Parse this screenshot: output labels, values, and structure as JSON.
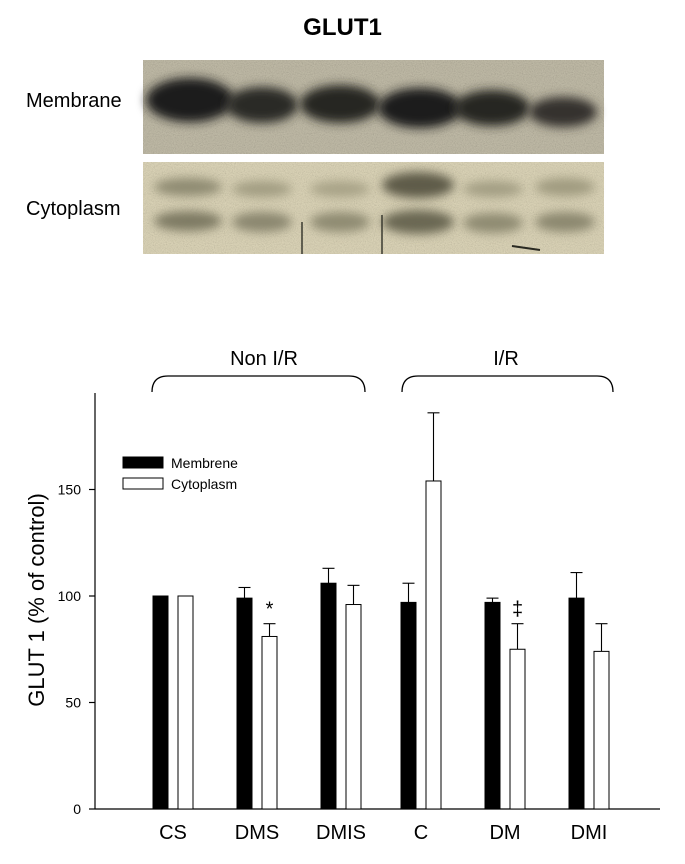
{
  "blot": {
    "title": "GLUT1",
    "rows": [
      {
        "label": "Membrane"
      },
      {
        "label": "Cytoplasm"
      }
    ]
  },
  "groups": [
    {
      "label": "Non I/R"
    },
    {
      "label": "I/R"
    }
  ],
  "chart_data": {
    "type": "bar",
    "ylabel": "GLUT 1 (% of control)",
    "ylim": [
      0,
      195
    ],
    "yticks": [
      0,
      50,
      100,
      150
    ],
    "categories": [
      "CS",
      "DMS",
      "DMIS",
      "C",
      "DM",
      "DMI"
    ],
    "series": [
      {
        "name": "Membrene",
        "color": "#000000",
        "values": [
          100,
          99,
          106,
          97,
          97,
          99
        ],
        "errors": [
          0,
          5,
          7,
          9,
          2,
          12
        ]
      },
      {
        "name": "Cytoplasm",
        "color": "#ffffff",
        "values": [
          100,
          81,
          96,
          154,
          75,
          74
        ],
        "errors": [
          0,
          6,
          9,
          32,
          12,
          13
        ]
      }
    ],
    "annotations": [
      {
        "category": "DMS",
        "series": "Cytoplasm",
        "text": "*"
      },
      {
        "category": "DM",
        "series": "Cytoplasm",
        "text": "‡"
      }
    ],
    "legend_position": "top-left"
  }
}
